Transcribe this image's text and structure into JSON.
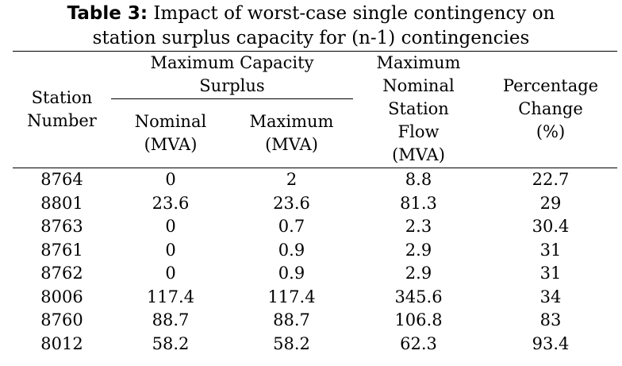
{
  "caption": {
    "label": "Table 3:",
    "text_line1": " Impact of worst-case single contingency on",
    "text_line2": "station surplus capacity for (n-1) contingencies"
  },
  "headers": {
    "station": [
      "Station",
      "Number"
    ],
    "surplus_group": [
      "Maximum Capacity",
      "Surplus"
    ],
    "nominal": [
      "Nominal",
      "(MVA)"
    ],
    "maximum": [
      "Maximum",
      "(MVA)"
    ],
    "flow": [
      "Maximum",
      "Nominal",
      "Station",
      "Flow",
      "(MVA)"
    ],
    "percentage": [
      "Percentage",
      "Change",
      "(%)"
    ]
  },
  "rows": [
    {
      "station": "8764",
      "nominal": "0",
      "maximum": "2",
      "flow": "8.8",
      "percentage": "22.7"
    },
    {
      "station": "8801",
      "nominal": "23.6",
      "maximum": "23.6",
      "flow": "81.3",
      "percentage": "29"
    },
    {
      "station": "8763",
      "nominal": "0",
      "maximum": "0.7",
      "flow": "2.3",
      "percentage": "30.4"
    },
    {
      "station": "8761",
      "nominal": "0",
      "maximum": "0.9",
      "flow": "2.9",
      "percentage": "31"
    },
    {
      "station": "8762",
      "nominal": "0",
      "maximum": "0.9",
      "flow": "2.9",
      "percentage": "31"
    },
    {
      "station": "8006",
      "nominal": "117.4",
      "maximum": "117.4",
      "flow": "345.6",
      "percentage": "34"
    },
    {
      "station": "8760",
      "nominal": "88.7",
      "maximum": "88.7",
      "flow": "106.8",
      "percentage": "83"
    },
    {
      "station": "8012",
      "nominal": "58.2",
      "maximum": "58.2",
      "flow": "62.3",
      "percentage": "93.4"
    }
  ]
}
